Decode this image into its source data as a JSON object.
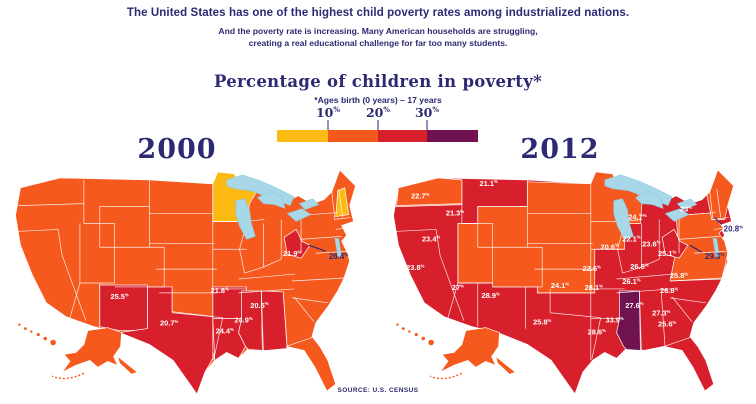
{
  "header": {
    "line1": "The United States has one of the highest child poverty rates among industrialized nations.",
    "line2": "And the poverty rate is increasing. Many American households are struggling,",
    "line3": "creating a real educational challenge for far too many students."
  },
  "legend": {
    "title": "Percentage of children in poverty*",
    "subtitle": "*Ages birth (0 years) – 17 years",
    "ticks": [
      {
        "num": "10",
        "sym": "%"
      },
      {
        "num": "20",
        "sym": "%"
      },
      {
        "num": "30",
        "sym": "%"
      }
    ]
  },
  "colors": {
    "yellow": "#FDBA12",
    "orange": "#F5591D",
    "red": "#D8202C",
    "purple": "#701150",
    "navy": "#2B2A72",
    "lake": "#A8D8E8",
    "lake_edge": "#85C3DB",
    "tick_line": "#8E93BE"
  },
  "source": "SOURCE: U.S. CENSUS",
  "maps": [
    {
      "year": "2000",
      "base_bin": "orange",
      "shape_fills": {
        "MN": "yellow",
        "NH": "yellow",
        "NM": "red",
        "TX": "red",
        "AR": "red",
        "LA": "red",
        "MS": "red",
        "AL": "red",
        "WV": "red",
        "AK": "orange",
        "HI": "orange"
      },
      "labels": [
        {
          "state": "NM",
          "text": "25.5"
        },
        {
          "state": "TX",
          "text": "20.7"
        },
        {
          "state": "AR",
          "text": "21.8"
        },
        {
          "state": "LA",
          "text": "24.4"
        },
        {
          "state": "MS",
          "text": "24.9"
        },
        {
          "state": "AL",
          "text": "20.5"
        },
        {
          "state": "WV",
          "text": "21.9"
        }
      ],
      "callouts": [
        {
          "state": "DC",
          "text": "26.4"
        }
      ]
    },
    {
      "year": "2012",
      "base_bin": "red",
      "shape_fills": {
        "WA": "orange",
        "CENTRAL": "orange",
        "MIDATL": "orange",
        "NNE": "orange",
        "WV": "red",
        "MS": "purple",
        "AK": "orange",
        "HI": "orange"
      },
      "labels": [
        {
          "state": "OR",
          "text": "22.7"
        },
        {
          "state": "MT",
          "text": "21.1"
        },
        {
          "state": "ID",
          "text": "21.3"
        },
        {
          "state": "NV",
          "text": "23.4"
        },
        {
          "state": "CA",
          "text": "23.8"
        },
        {
          "state": "AZ",
          "text": "27"
        },
        {
          "state": "NM",
          "text": "28.9"
        },
        {
          "state": "TX",
          "text": "25.8"
        },
        {
          "state": "OK",
          "text": "24.1"
        },
        {
          "state": "MO",
          "text": "22.6"
        },
        {
          "state": "AR",
          "text": "28.1"
        },
        {
          "state": "LA",
          "text": "28.6"
        },
        {
          "state": "MS",
          "text": "33.9"
        },
        {
          "state": "AL",
          "text": "27.6"
        },
        {
          "state": "GA",
          "text": "27.3"
        },
        {
          "state": "FL",
          "text": "25.6"
        },
        {
          "state": "SC",
          "text": "26.8"
        },
        {
          "state": "NC",
          "text": "25.8"
        },
        {
          "state": "TN",
          "text": "26.1"
        },
        {
          "state": "KY",
          "text": "26.5"
        },
        {
          "state": "WV",
          "text": "25.1"
        },
        {
          "state": "OH",
          "text": "23.6"
        },
        {
          "state": "IN",
          "text": "22.1"
        },
        {
          "state": "IL",
          "text": "20.6"
        },
        {
          "state": "MI",
          "text": "24.7"
        },
        {
          "state": "NY",
          "text": "23"
        }
      ],
      "callouts": [
        {
          "state": "RI",
          "text": "20.8"
        },
        {
          "state": "DC",
          "text": "29.3"
        }
      ]
    }
  ],
  "chart_data": {
    "type": "heatmap",
    "subtype": "usa-choropleth-pair",
    "title": "Percentage of children in poverty*",
    "note": "*Ages birth (0 years) – 17 years",
    "unit": "%",
    "legend_position": "top-center",
    "color_bins": [
      {
        "range": "<10%",
        "color": "#FDBA12"
      },
      {
        "range": "10-20%",
        "color": "#F5591D"
      },
      {
        "range": "20-30%",
        "color": "#D8202C"
      },
      {
        "range": ">30%",
        "color": "#701150"
      }
    ],
    "series": [
      {
        "name": "2000",
        "points": [
          {
            "state": "New Mexico",
            "value": 25.5
          },
          {
            "state": "Texas",
            "value": 20.7
          },
          {
            "state": "Arkansas",
            "value": 21.8
          },
          {
            "state": "Louisiana",
            "value": 24.4
          },
          {
            "state": "Mississippi",
            "value": 24.9
          },
          {
            "state": "Alabama",
            "value": 20.5
          },
          {
            "state": "West Virginia",
            "value": 21.9
          },
          {
            "state": "District of Columbia",
            "value": 26.4
          }
        ],
        "under_10_states": [
          "Minnesota",
          "New Hampshire"
        ]
      },
      {
        "name": "2012",
        "points": [
          {
            "state": "Oregon",
            "value": 22.7
          },
          {
            "state": "Montana",
            "value": 21.1
          },
          {
            "state": "Idaho",
            "value": 21.3
          },
          {
            "state": "Nevada",
            "value": 23.4
          },
          {
            "state": "California",
            "value": 23.8
          },
          {
            "state": "Arizona",
            "value": 27
          },
          {
            "state": "New Mexico",
            "value": 28.9
          },
          {
            "state": "Texas",
            "value": 25.8
          },
          {
            "state": "Oklahoma",
            "value": 24.1
          },
          {
            "state": "Missouri",
            "value": 22.6
          },
          {
            "state": "Arkansas",
            "value": 28.1
          },
          {
            "state": "Louisiana",
            "value": 28.6
          },
          {
            "state": "Mississippi",
            "value": 33.9
          },
          {
            "state": "Alabama",
            "value": 27.6
          },
          {
            "state": "Georgia",
            "value": 27.3
          },
          {
            "state": "Florida",
            "value": 25.6
          },
          {
            "state": "South Carolina",
            "value": 26.8
          },
          {
            "state": "North Carolina",
            "value": 25.8
          },
          {
            "state": "Tennessee",
            "value": 26.1
          },
          {
            "state": "Kentucky",
            "value": 26.5
          },
          {
            "state": "West Virginia",
            "value": 25.1
          },
          {
            "state": "Ohio",
            "value": 23.6
          },
          {
            "state": "Indiana",
            "value": 22.1
          },
          {
            "state": "Illinois",
            "value": 20.6
          },
          {
            "state": "Michigan",
            "value": 24.7
          },
          {
            "state": "New York",
            "value": 23
          },
          {
            "state": "Rhode Island",
            "value": 20.8
          },
          {
            "state": "District of Columbia",
            "value": 29.3
          }
        ],
        "over_30_states": [
          "Mississippi"
        ]
      }
    ]
  }
}
